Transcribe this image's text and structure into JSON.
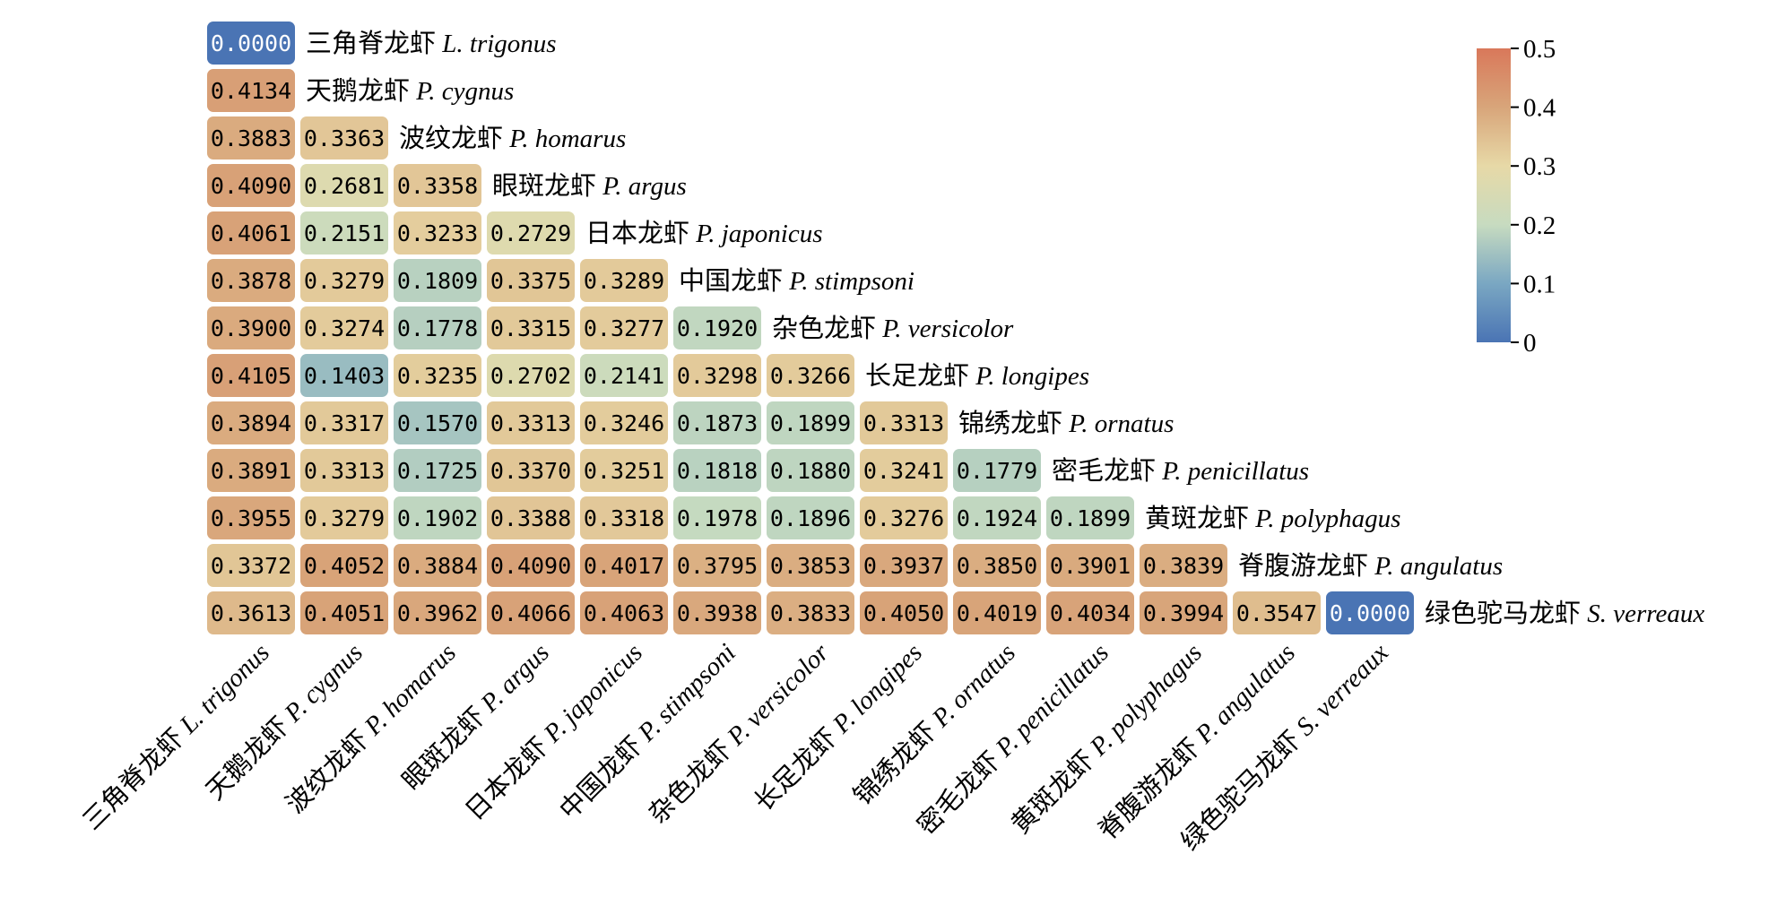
{
  "chart_data": {
    "type": "heatmap",
    "title": "",
    "xlabel": "",
    "ylabel": "",
    "layout": "lower-triangle",
    "species": [
      {
        "cn": "三角脊龙虾",
        "latin": "L. trigonus"
      },
      {
        "cn": "天鹅龙虾",
        "latin": "P. cygnus"
      },
      {
        "cn": "波纹龙虾",
        "latin": "P. homarus"
      },
      {
        "cn": "眼斑龙虾",
        "latin": "P. argus"
      },
      {
        "cn": "日本龙虾",
        "latin": "P. japonicus"
      },
      {
        "cn": "中国龙虾",
        "latin": "P. stimpsoni"
      },
      {
        "cn": "杂色龙虾",
        "latin": "P. versicolor"
      },
      {
        "cn": "长足龙虾",
        "latin": "P. longipes"
      },
      {
        "cn": "锦绣龙虾",
        "latin": "P. ornatus"
      },
      {
        "cn": "密毛龙虾",
        "latin": "P. penicillatus"
      },
      {
        "cn": "黄斑龙虾",
        "latin": "P. polyphagus"
      },
      {
        "cn": "脊腹游龙虾",
        "latin": "P. angulatus"
      },
      {
        "cn": "绿色驼马龙虾",
        "latin": "S. verreaux"
      }
    ],
    "values": [
      [
        "0.0000"
      ],
      [
        "0.4134"
      ],
      [
        "0.3883",
        "0.3363"
      ],
      [
        "0.4090",
        "0.2681",
        "0.3358"
      ],
      [
        "0.4061",
        "0.2151",
        "0.3233",
        "0.2729"
      ],
      [
        "0.3878",
        "0.3279",
        "0.1809",
        "0.3375",
        "0.3289"
      ],
      [
        "0.3900",
        "0.3274",
        "0.1778",
        "0.3315",
        "0.3277",
        "0.1920"
      ],
      [
        "0.4105",
        "0.1403",
        "0.3235",
        "0.2702",
        "0.2141",
        "0.3298",
        "0.3266"
      ],
      [
        "0.3894",
        "0.3317",
        "0.1570",
        "0.3313",
        "0.3246",
        "0.1873",
        "0.1899",
        "0.3313"
      ],
      [
        "0.3891",
        "0.3313",
        "0.1725",
        "0.3370",
        "0.3251",
        "0.1818",
        "0.1880",
        "0.3241",
        "0.1779"
      ],
      [
        "0.3955",
        "0.3279",
        "0.1902",
        "0.3388",
        "0.3318",
        "0.1978",
        "0.1896",
        "0.3276",
        "0.1924",
        "0.1899"
      ],
      [
        "0.3372",
        "0.4052",
        "0.3884",
        "0.4090",
        "0.4017",
        "0.3795",
        "0.3853",
        "0.3937",
        "0.3850",
        "0.3901",
        "0.3839"
      ],
      [
        "0.3613",
        "0.4051",
        "0.3962",
        "0.4066",
        "0.4063",
        "0.3938",
        "0.3833",
        "0.4050",
        "0.4019",
        "0.4034",
        "0.3994",
        "0.3547",
        "0.0000"
      ]
    ],
    "colorbar": {
      "range": [
        0,
        0.5
      ],
      "ticks": [
        "0",
        "0.1",
        "0.2",
        "0.3",
        "0.4",
        "0.5"
      ],
      "stops": [
        "#4a74b4",
        "#7aa7c2",
        "#c7dbc0",
        "#e7d9a7",
        "#d8a57a",
        "#d9785a"
      ]
    }
  }
}
